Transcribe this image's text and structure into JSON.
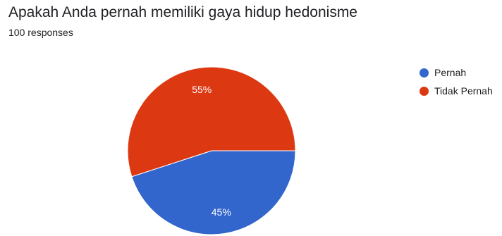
{
  "title": "Apakah Anda pernah memiliki gaya hidup hedonisme",
  "subtitle": "100 responses",
  "chart_data": {
    "type": "pie",
    "title": "Apakah Anda pernah memiliki gaya hidup hedonisme",
    "categories": [
      "Pernah",
      "Tidak Pernah"
    ],
    "values": [
      45,
      55
    ],
    "labels": [
      "45%",
      "55%"
    ],
    "colors": [
      "#3366cc",
      "#dc3912"
    ],
    "legend_position": "right"
  }
}
